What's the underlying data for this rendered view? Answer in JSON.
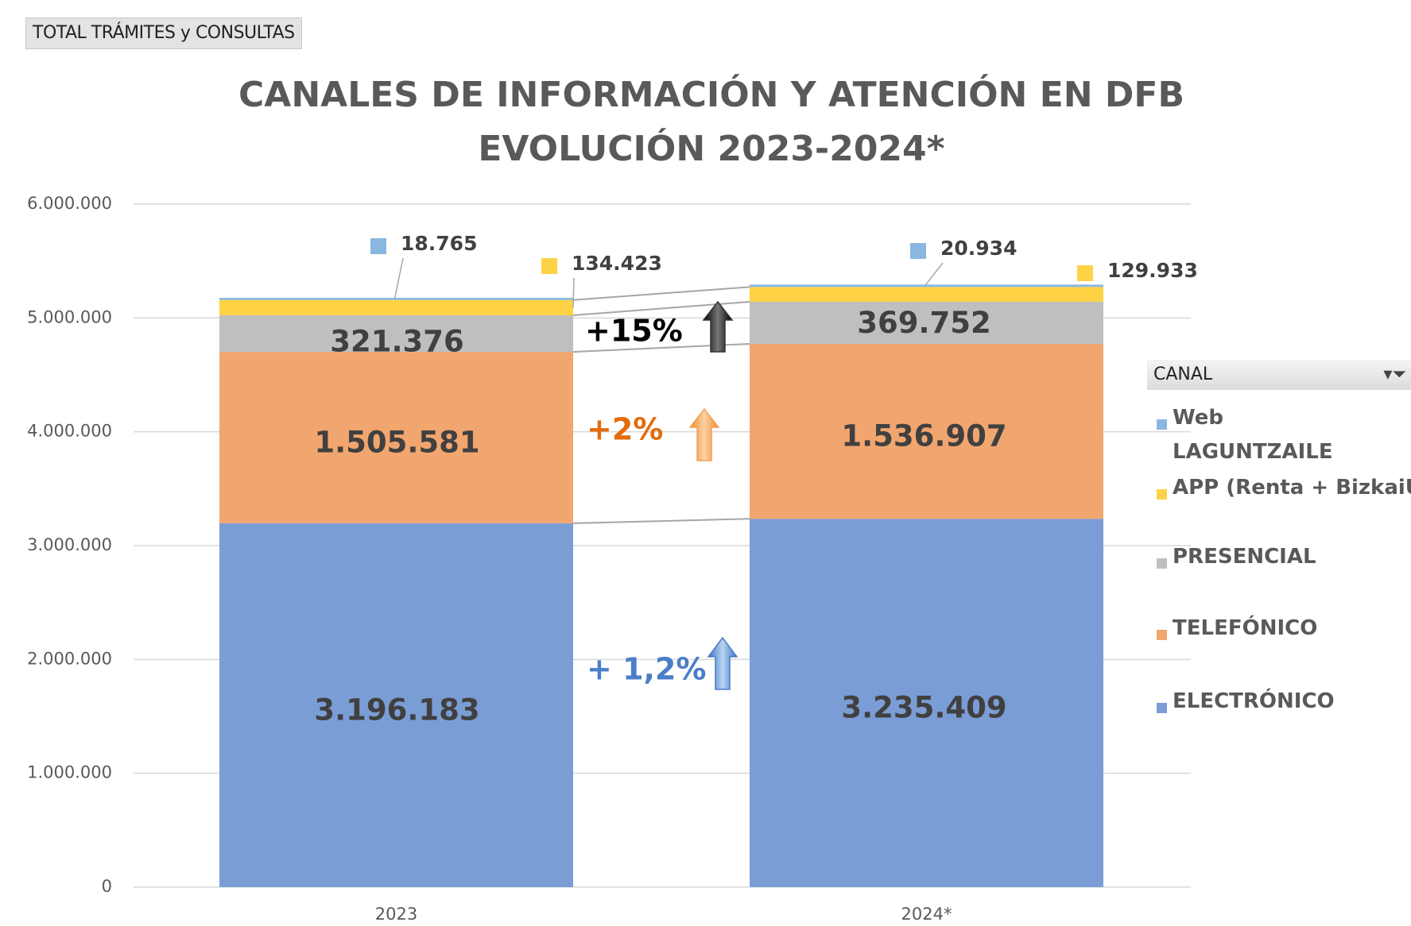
{
  "button": "TOTAL TRÁMITES y CONSULTAS",
  "chart_data": {
    "type": "bar",
    "stacked": true,
    "title": "CANALES DE INFORMACIÓN Y ATENCIÓN EN DFB",
    "subtitle": "EVOLUCIÓN 2023-2024*",
    "categories": [
      "2023",
      "2024*"
    ],
    "ylim": [
      0,
      6000000
    ],
    "yticks": [
      0,
      {
        "value": 1000000,
        "label": "1.000.000"
      },
      {
        "value": 2000000,
        "label": "2.000.000"
      },
      {
        "value": 3000000,
        "label": "3.000.000"
      },
      {
        "value": 4000000,
        "label": "4.000.000"
      },
      {
        "value": 5000000,
        "label": "5.000.000"
      },
      {
        "value": 6000000,
        "label": "6.000.000"
      }
    ],
    "grid": true,
    "legend_title": "CANAL",
    "series": [
      {
        "name": "ELECTRÓNICO",
        "color": "#7b9dd6",
        "values": [
          3196183,
          3235409
        ],
        "value_labels": [
          "3.196.183",
          "3.235.409"
        ]
      },
      {
        "name": "TELEFÓNICO",
        "color": "#f1a56f",
        "values": [
          1505581,
          1536907
        ],
        "value_labels": [
          "1.505.581",
          "1.536.907"
        ]
      },
      {
        "name": "PRESENCIAL",
        "color": "#bfbfbf",
        "values": [
          321376,
          369752
        ],
        "value_labels": [
          "321.376",
          "369.752"
        ]
      },
      {
        "name": "APP (Renta + BizkaiUp)",
        "color": "#fdd244",
        "values": [
          134423,
          129933
        ],
        "value_labels": [
          "134.423",
          "129.933"
        ]
      },
      {
        "name": "Web LAGUNTZAILE",
        "color": "#8ab7e1",
        "values": [
          18765,
          20934
        ],
        "value_labels": [
          "18.765",
          "20.934"
        ]
      }
    ],
    "annotations": [
      "+15%",
      "+2%",
      "+ 1,2%"
    ]
  }
}
